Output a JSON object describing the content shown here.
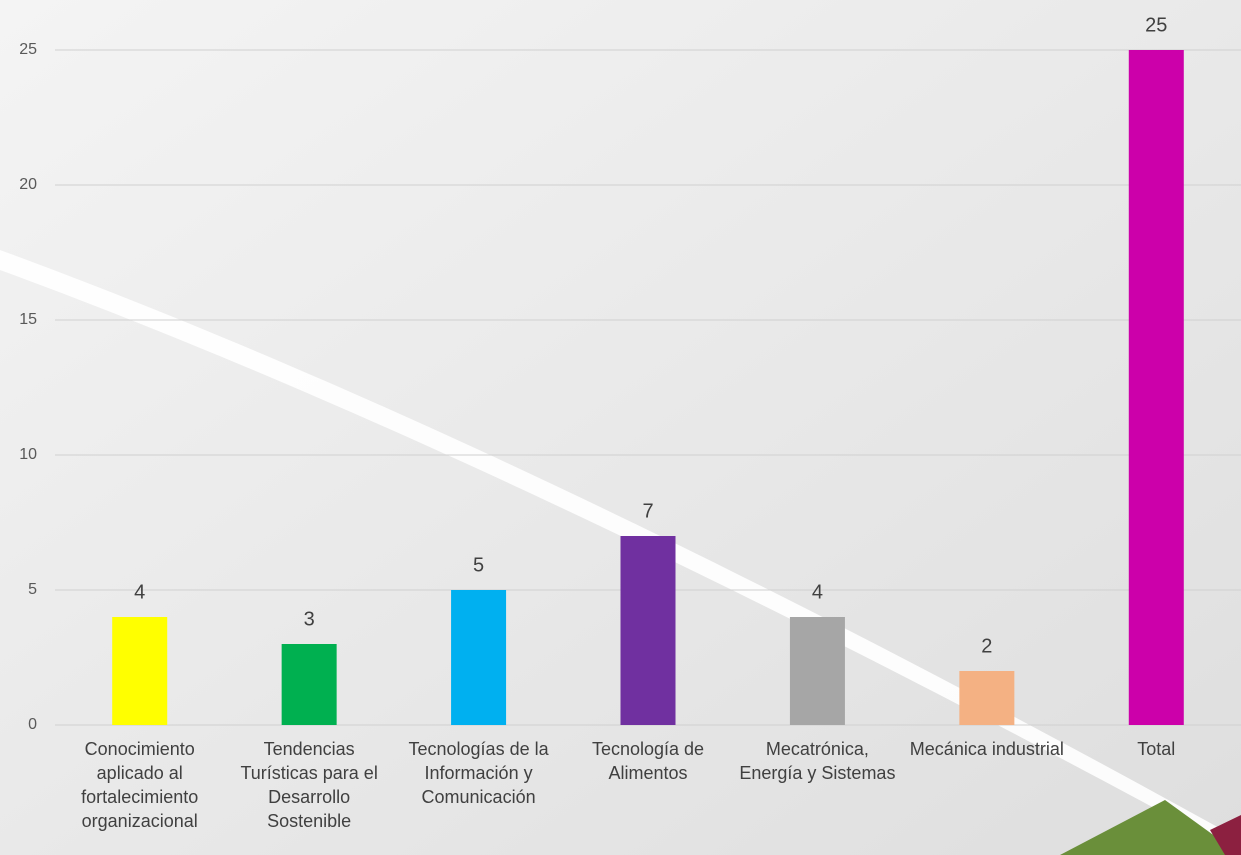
{
  "chart_data": {
    "type": "bar",
    "categories": [
      "Conocimiento aplicado al fortalecimiento organizacional",
      "Tendencias Turísticas para el Desarrollo Sostenible",
      "Tecnologías de la Información y Comunicación",
      "Tecnología de Alimentos",
      "Mecatrónica, Energía y Sistemas",
      "Mecánica industrial",
      "Total"
    ],
    "values": [
      4,
      3,
      5,
      7,
      4,
      2,
      25
    ],
    "colors": [
      "#ffff00",
      "#00b050",
      "#00b0f0",
      "#7030a0",
      "#a6a6a6",
      "#f4b183",
      "#cc00aa"
    ],
    "ylim": [
      0,
      25
    ],
    "yticks": [
      0,
      5,
      10,
      15,
      20,
      25
    ],
    "grid": true
  }
}
